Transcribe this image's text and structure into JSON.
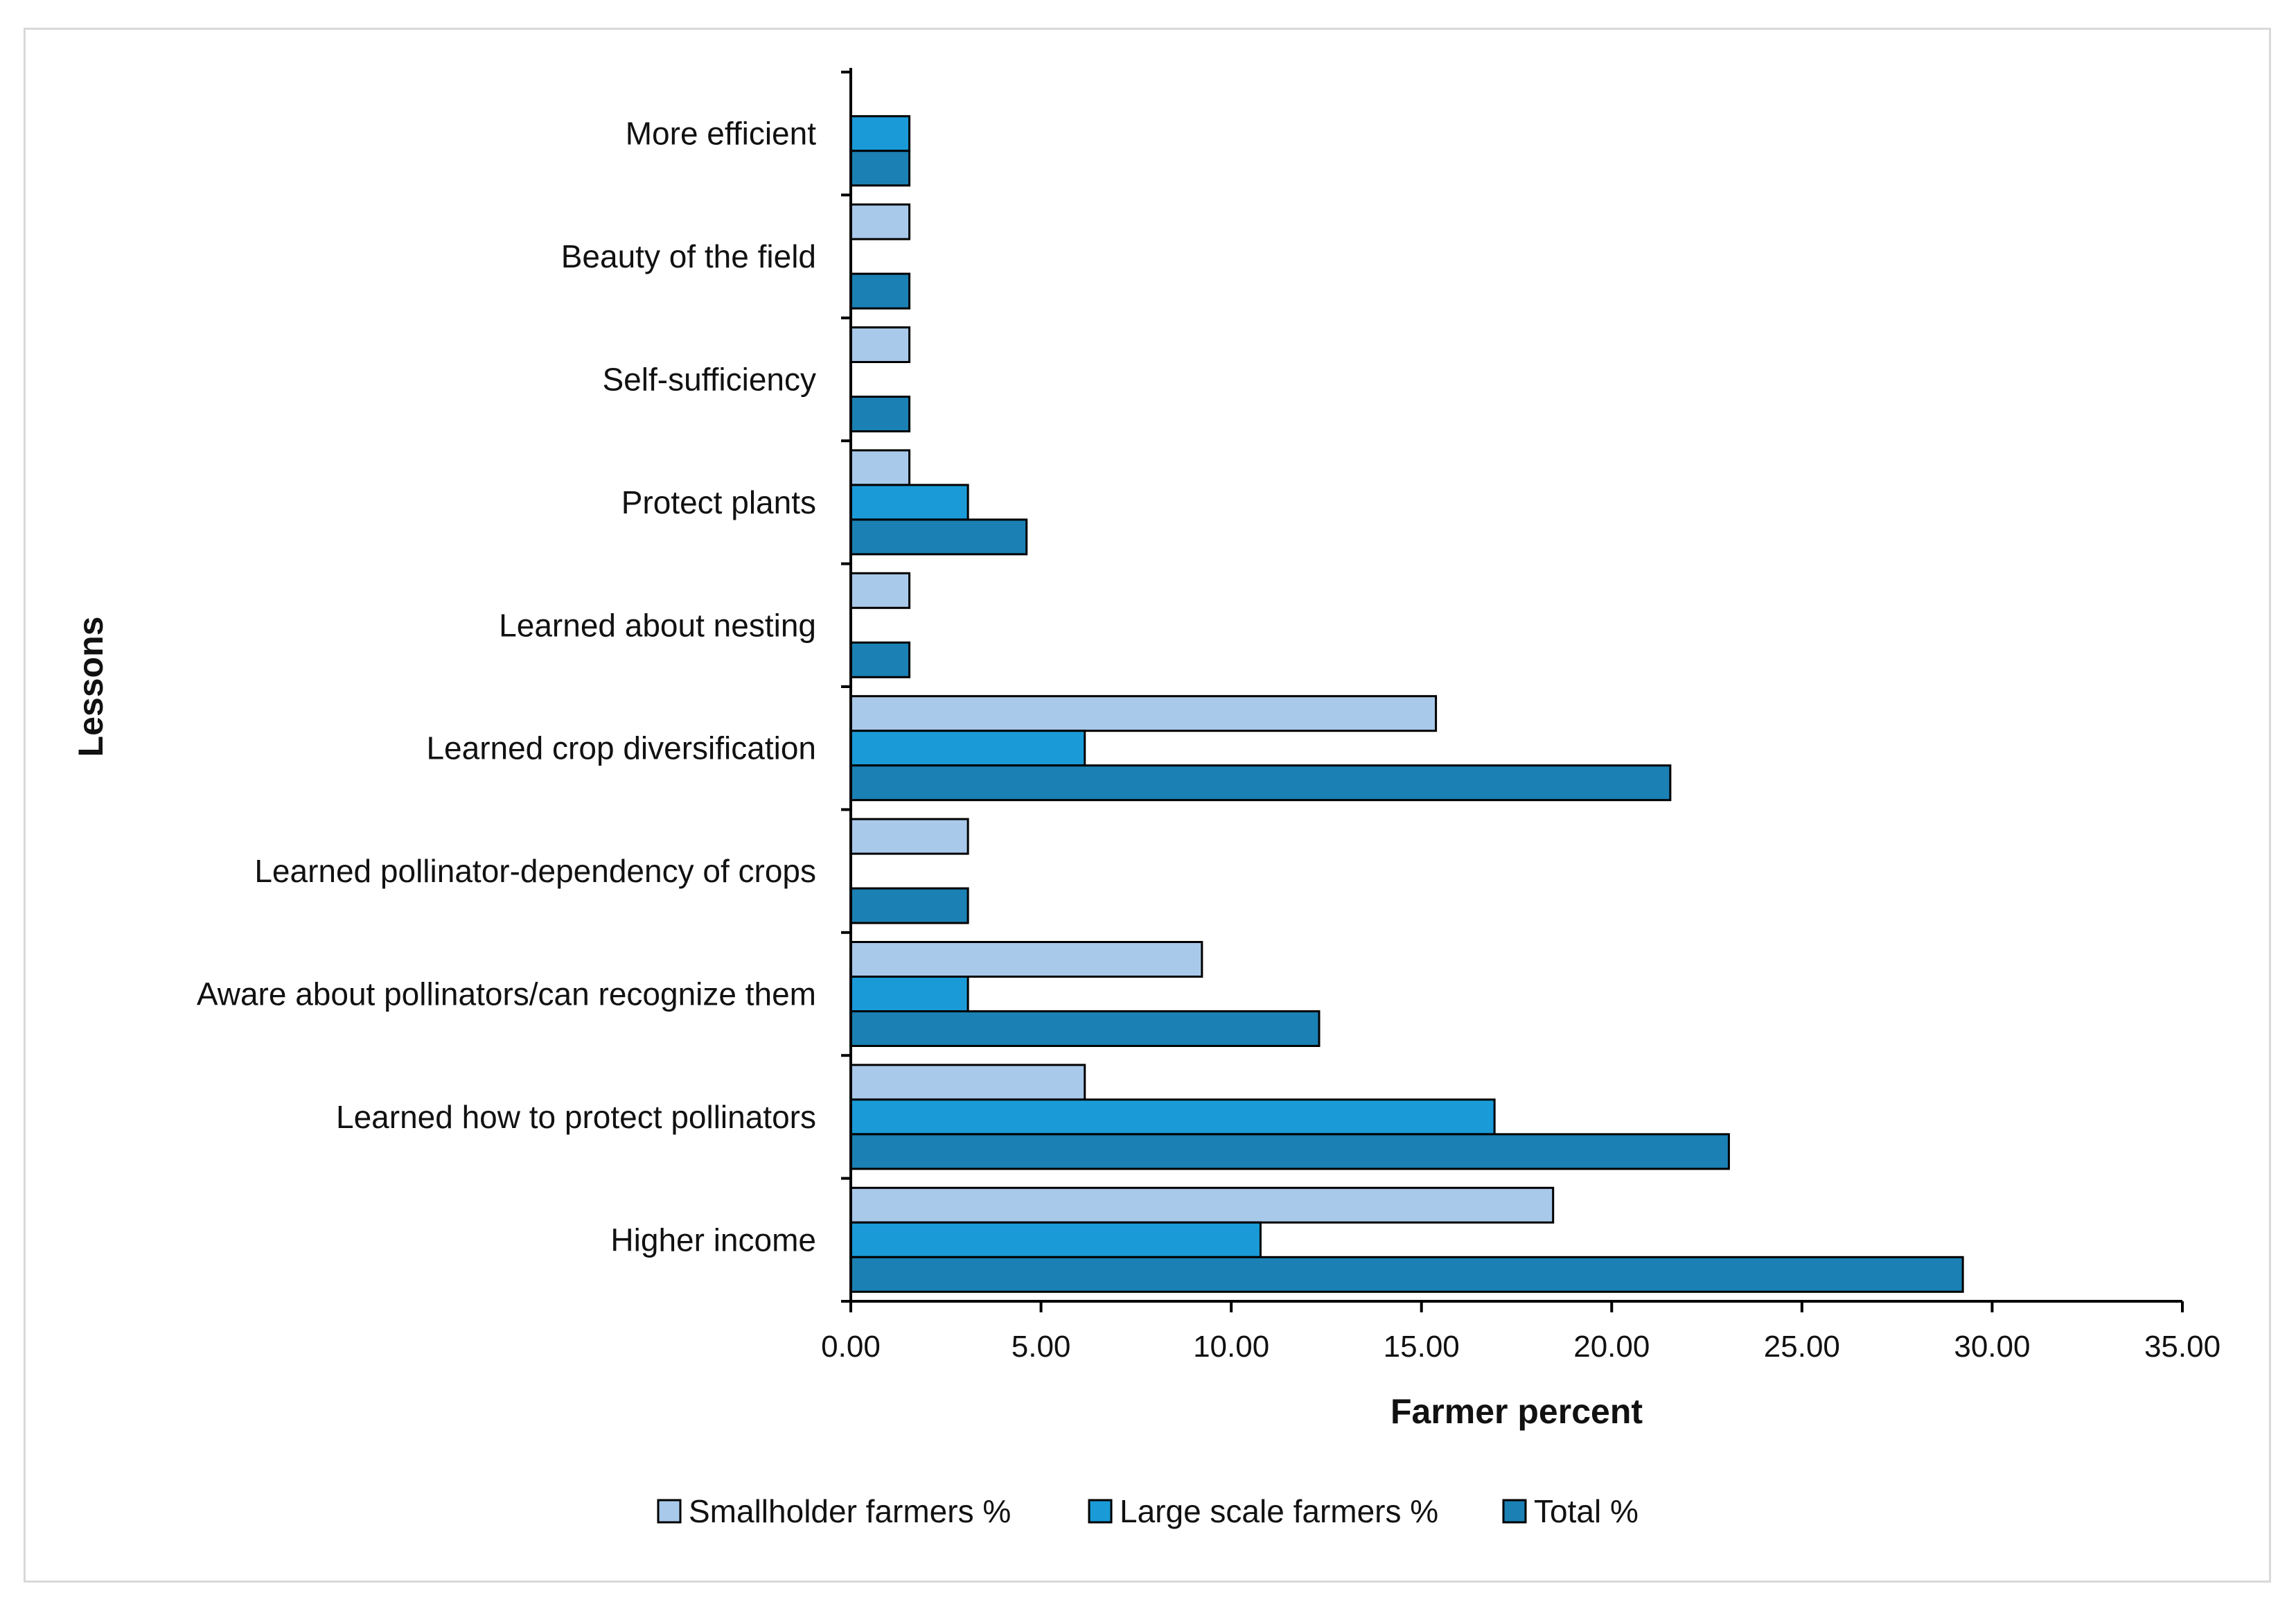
{
  "chart_data": {
    "type": "bar",
    "orientation": "horizontal",
    "title": "",
    "xlabel": "Farmer percent",
    "ylabel": "Lessons",
    "xlim": [
      0,
      35
    ],
    "x_ticks": [
      "0.00",
      "5.00",
      "10.00",
      "15.00",
      "20.00",
      "25.00",
      "30.00",
      "35.00"
    ],
    "grid": false,
    "legend_position": "bottom",
    "categories": [
      "More efficient",
      "Beauty of the field",
      "Self-sufficiency",
      "Protect plants",
      "Learned about nesting",
      "Learned crop diversification",
      "Learned pollinator-dependency of crops",
      "Aware about pollinators/can recognize them",
      "Learned how to protect pollinators",
      "Higher income"
    ],
    "series": [
      {
        "name": "Smallholder farmers %",
        "color": "#a9c9ea",
        "values": [
          0,
          1.54,
          1.54,
          1.54,
          1.54,
          15.38,
          3.08,
          9.23,
          6.15,
          18.46
        ]
      },
      {
        "name": "Large scale farmers %",
        "color": "#1a9bd7",
        "values": [
          1.54,
          0,
          0,
          3.08,
          0,
          6.15,
          0,
          3.08,
          16.92,
          10.77
        ]
      },
      {
        "name": "Total %",
        "color": "#1b80b3",
        "values": [
          1.54,
          1.54,
          1.54,
          4.62,
          1.54,
          21.54,
          3.08,
          12.31,
          23.08,
          29.23
        ]
      }
    ]
  }
}
